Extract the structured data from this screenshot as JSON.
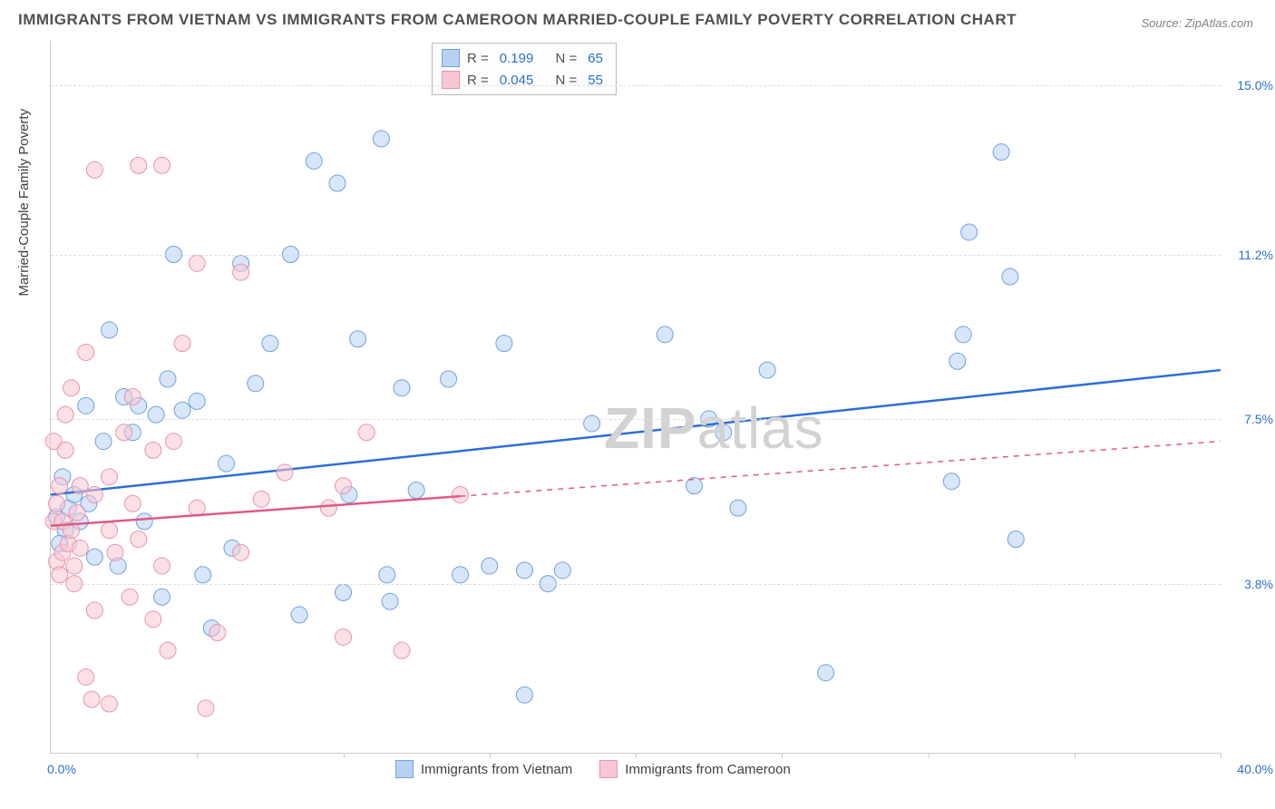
{
  "title": "IMMIGRANTS FROM VIETNAM VS IMMIGRANTS FROM CAMEROON MARRIED-COUPLE FAMILY POVERTY CORRELATION CHART",
  "source": "Source: ZipAtlas.com",
  "y_axis_title": "Married-Couple Family Poverty",
  "watermark": {
    "prefix": "ZIP",
    "suffix": "atlas"
  },
  "chart": {
    "type": "scatter",
    "xlim": [
      0,
      40
    ],
    "ylim": [
      0,
      16
    ],
    "y_gridlines": [
      3.8,
      7.5,
      11.2,
      15.0
    ],
    "y_tick_labels": [
      "3.8%",
      "7.5%",
      "11.2%",
      "15.0%"
    ],
    "x_tick_positions": [
      0,
      5,
      10,
      15,
      20,
      25,
      30,
      35,
      40
    ],
    "x_axis_left_label": "0.0%",
    "x_axis_right_label": "40.0%",
    "grid_color": "#dddddd",
    "axis_color": "#cccccc",
    "background_color": "#ffffff",
    "label_color": "#2b6fd6",
    "title_color": "#505050",
    "title_fontsize": 17,
    "label_fontsize": 14,
    "marker_radius": 9,
    "marker_opacity": 0.55,
    "line_width": 2.5
  },
  "legend_top": {
    "rows": [
      {
        "swatch_fill": "#b7d1f3",
        "swatch_border": "#6fa1e0",
        "r_label": "R =",
        "r_val": "0.199",
        "n_label": "N =",
        "n_val": "65"
      },
      {
        "swatch_fill": "#f7c6d2",
        "swatch_border": "#e794b0",
        "r_label": "R =",
        "r_val": "0.045",
        "n_label": "N =",
        "n_val": "55"
      }
    ]
  },
  "legend_bottom": {
    "items": [
      {
        "swatch_fill": "#b7d1f3",
        "swatch_border": "#6fa1e0",
        "label": "Immigrants from Vietnam"
      },
      {
        "swatch_fill": "#f7c6d2",
        "swatch_border": "#e794b0",
        "label": "Immigrants from Cameroon"
      }
    ]
  },
  "series": [
    {
      "name": "Immigrants from Vietnam",
      "marker_fill": "#b7d1f3",
      "marker_stroke": "#6fa1e0",
      "trend": {
        "x1": 0,
        "y1": 5.8,
        "x2": 40,
        "y2": 8.6,
        "color": "#2b6fd6",
        "dash_from_x": null
      },
      "points": [
        [
          0.2,
          5.3
        ],
        [
          0.5,
          5.0
        ],
        [
          0.6,
          5.5
        ],
        [
          0.4,
          6.2
        ],
        [
          0.3,
          4.7
        ],
        [
          0.8,
          5.8
        ],
        [
          1.0,
          5.2
        ],
        [
          1.2,
          7.8
        ],
        [
          1.5,
          4.4
        ],
        [
          1.3,
          5.6
        ],
        [
          2.0,
          9.5
        ],
        [
          2.3,
          4.2
        ],
        [
          2.5,
          8.0
        ],
        [
          2.8,
          7.2
        ],
        [
          3.0,
          7.8
        ],
        [
          3.2,
          5.2
        ],
        [
          3.6,
          7.6
        ],
        [
          4.0,
          8.4
        ],
        [
          4.2,
          11.2
        ],
        [
          4.5,
          7.7
        ],
        [
          5.0,
          7.9
        ],
        [
          5.2,
          4.0
        ],
        [
          6.0,
          6.5
        ],
        [
          6.2,
          4.6
        ],
        [
          6.5,
          11.0
        ],
        [
          7.0,
          8.3
        ],
        [
          7.5,
          9.2
        ],
        [
          8.2,
          11.2
        ],
        [
          8.5,
          3.1
        ],
        [
          9.0,
          13.3
        ],
        [
          10.0,
          3.6
        ],
        [
          10.2,
          5.8
        ],
        [
          10.5,
          9.3
        ],
        [
          11.3,
          13.8
        ],
        [
          11.5,
          4.0
        ],
        [
          11.6,
          3.4
        ],
        [
          12.0,
          8.2
        ],
        [
          12.5,
          5.9
        ],
        [
          13.6,
          8.4
        ],
        [
          14.0,
          4.0
        ],
        [
          15.0,
          4.2
        ],
        [
          15.5,
          9.2
        ],
        [
          16.2,
          1.3
        ],
        [
          16.2,
          4.1
        ],
        [
          17.0,
          3.8
        ],
        [
          17.5,
          4.1
        ],
        [
          21.0,
          9.4
        ],
        [
          22.0,
          6.0
        ],
        [
          22.5,
          7.5
        ],
        [
          23.0,
          7.2
        ],
        [
          23.5,
          5.5
        ],
        [
          24.5,
          8.6
        ],
        [
          26.5,
          1.8
        ],
        [
          30.8,
          6.1
        ],
        [
          31.0,
          8.8
        ],
        [
          31.2,
          9.4
        ],
        [
          31.4,
          11.7
        ],
        [
          32.5,
          13.5
        ],
        [
          32.8,
          10.7
        ],
        [
          33.0,
          4.8
        ],
        [
          9.8,
          12.8
        ],
        [
          5.5,
          2.8
        ],
        [
          1.8,
          7.0
        ],
        [
          3.8,
          3.5
        ],
        [
          18.5,
          7.4
        ]
      ]
    },
    {
      "name": "Immigrants from Cameroon",
      "marker_fill": "#f7c6d2",
      "marker_stroke": "#e794b0",
      "trend": {
        "x1": 0,
        "y1": 5.1,
        "x2": 40,
        "y2": 7.0,
        "color": "#e05a85",
        "dash_from_x": 14
      },
      "points": [
        [
          0.1,
          5.2
        ],
        [
          0.1,
          7.0
        ],
        [
          0.2,
          4.3
        ],
        [
          0.2,
          5.6
        ],
        [
          0.3,
          4.0
        ],
        [
          0.3,
          6.0
        ],
        [
          0.4,
          4.5
        ],
        [
          0.4,
          5.2
        ],
        [
          0.5,
          6.8
        ],
        [
          0.5,
          7.6
        ],
        [
          0.6,
          4.7
        ],
        [
          0.7,
          5.0
        ],
        [
          0.7,
          8.2
        ],
        [
          0.8,
          3.8
        ],
        [
          0.8,
          4.2
        ],
        [
          0.9,
          5.4
        ],
        [
          1.0,
          4.6
        ],
        [
          1.0,
          6.0
        ],
        [
          1.2,
          1.7
        ],
        [
          1.2,
          9.0
        ],
        [
          1.4,
          1.2
        ],
        [
          1.5,
          3.2
        ],
        [
          1.5,
          5.8
        ],
        [
          1.5,
          13.1
        ],
        [
          2.0,
          1.1
        ],
        [
          2.0,
          5.0
        ],
        [
          2.0,
          6.2
        ],
        [
          2.2,
          4.5
        ],
        [
          2.5,
          7.2
        ],
        [
          2.7,
          3.5
        ],
        [
          2.8,
          5.6
        ],
        [
          2.8,
          8.0
        ],
        [
          3.0,
          4.8
        ],
        [
          3.0,
          13.2
        ],
        [
          3.5,
          3.0
        ],
        [
          3.5,
          6.8
        ],
        [
          3.8,
          4.2
        ],
        [
          3.8,
          13.2
        ],
        [
          4.0,
          2.3
        ],
        [
          4.2,
          7.0
        ],
        [
          4.5,
          9.2
        ],
        [
          5.0,
          5.5
        ],
        [
          5.0,
          11.0
        ],
        [
          5.3,
          1.0
        ],
        [
          5.7,
          2.7
        ],
        [
          6.5,
          4.5
        ],
        [
          6.5,
          10.8
        ],
        [
          7.2,
          5.7
        ],
        [
          8.0,
          6.3
        ],
        [
          9.5,
          5.5
        ],
        [
          10.0,
          2.6
        ],
        [
          10.0,
          6.0
        ],
        [
          10.8,
          7.2
        ],
        [
          12.0,
          2.3
        ],
        [
          14.0,
          5.8
        ]
      ]
    }
  ]
}
